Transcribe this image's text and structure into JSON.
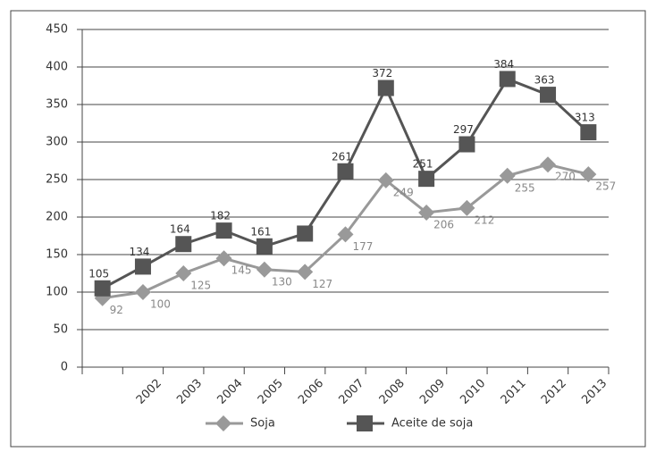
{
  "chart_data": {
    "type": "line",
    "categories": [
      null,
      "2002",
      "2003",
      "2004",
      "2005",
      "2006",
      "2007",
      "2008",
      "2009",
      "2010",
      "2011",
      "2012",
      "2013"
    ],
    "series": [
      {
        "name": "Soja",
        "color": "#999999",
        "marker": "diamond",
        "values": [
          92,
          100,
          125,
          145,
          130,
          127,
          177,
          249,
          206,
          212,
          255,
          270,
          257
        ]
      },
      {
        "name": "Aceite de soja",
        "color": "#555555",
        "marker": "square",
        "values": [
          105,
          134,
          164,
          182,
          161,
          178,
          261,
          372,
          251,
          297,
          384,
          363,
          313
        ],
        "value_labels": [
          "105",
          "134",
          "164",
          "182",
          "161",
          null,
          "261",
          "372",
          "251",
          "297",
          "384",
          "363",
          "313"
        ]
      }
    ],
    "ylim": [
      0,
      450
    ],
    "yticks": [
      0,
      50,
      100,
      150,
      200,
      250,
      300,
      350,
      400,
      450
    ],
    "grid": true,
    "legend": "bottom"
  }
}
